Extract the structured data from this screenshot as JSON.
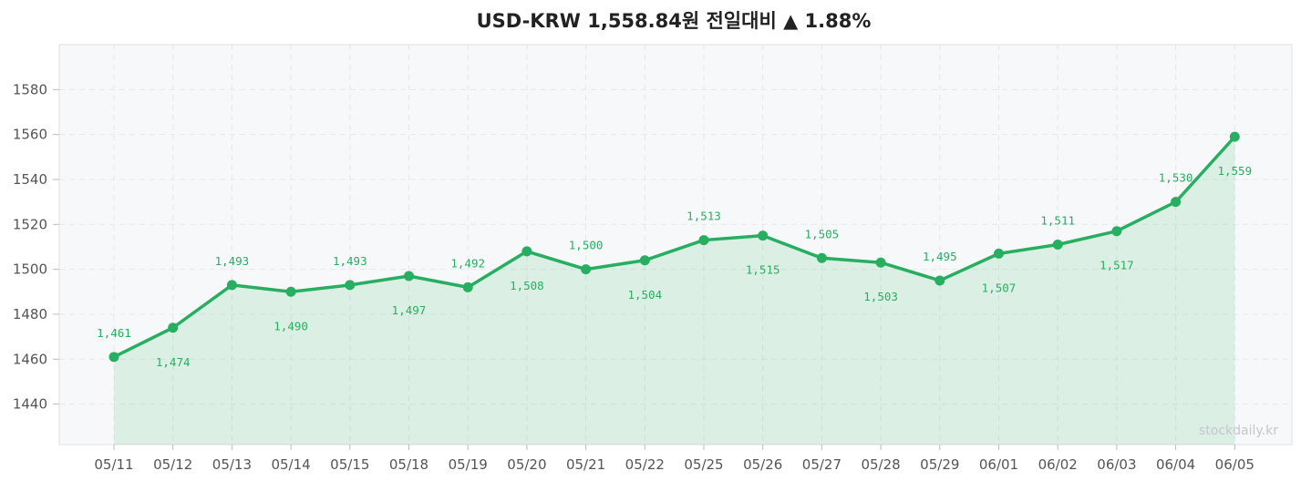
{
  "title": "USD-KRW  1,558.84원  전일대비 ▲ 1.88%",
  "watermark": "stockdaily.kr",
  "colors": {
    "line": "#27ae60",
    "fill": "#27ae60",
    "plot_background": "#f7f8fa",
    "grid": "#e4e7eb",
    "frame": "#dcdfe3"
  },
  "chart_data": {
    "type": "line",
    "title": "USD-KRW  1,558.84원  전일대비 ▲ 1.88%",
    "xlabel": "",
    "ylabel": "",
    "categories": [
      "05/11",
      "05/12",
      "05/13",
      "05/14",
      "05/15",
      "05/18",
      "05/19",
      "05/20",
      "05/21",
      "05/22",
      "05/25",
      "05/26",
      "05/27",
      "05/28",
      "05/29",
      "06/01",
      "06/02",
      "06/03",
      "06/04",
      "06/05"
    ],
    "series": [
      {
        "values": [
          1461,
          1474,
          1493,
          1490,
          1493,
          1497,
          1492,
          1508,
          1500,
          1504,
          1513,
          1515,
          1505,
          1503,
          1495,
          1507,
          1511,
          1517,
          1530,
          1559
        ],
        "labels": [
          "1,461",
          "1,474",
          "1,493",
          "1,490",
          "1,493",
          "1,497",
          "1,492",
          "1,508",
          "1,500",
          "1,504",
          "1,513",
          "1,515",
          "1,505",
          "1,503",
          "1,495",
          "1,507",
          "1,511",
          "1,517",
          "1,530",
          "1,559"
        ]
      }
    ],
    "yticks": [
      1440,
      1460,
      1480,
      1500,
      1520,
      1540,
      1560,
      1580
    ],
    "ylim": [
      1422,
      1600
    ],
    "grid": true,
    "filled_area": true,
    "legend": "none"
  }
}
